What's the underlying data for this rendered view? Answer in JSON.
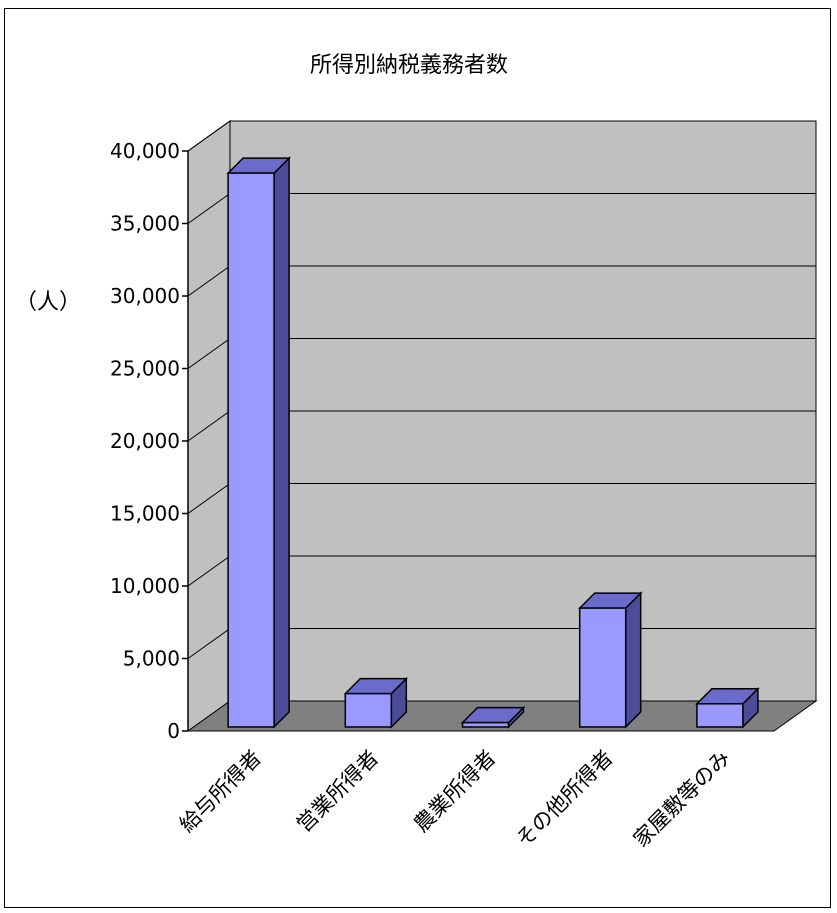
{
  "chart_data": {
    "type": "bar",
    "title": "所得別納税義務者数",
    "ylabel": "（人）",
    "xlabel": "",
    "categories": [
      "給与所得者",
      "営業所得者",
      "農業所得者",
      "その他所得者",
      "家屋敷等のみ"
    ],
    "values": [
      38200,
      2300,
      300,
      8200,
      1600
    ],
    "ylim": [
      0,
      40000
    ],
    "yticks": [
      "0",
      "5,000",
      "10,000",
      "15,000",
      "20,000",
      "25,000",
      "30,000",
      "35,000",
      "40,000"
    ],
    "grid": true,
    "legend": "none",
    "colors": {
      "bar_front": "#9999ff",
      "bar_top": "#6b6bcc",
      "bar_side": "#4c4c99",
      "wall": "#c0c0c0",
      "floor": "#808080",
      "grid": "#000000"
    }
  }
}
